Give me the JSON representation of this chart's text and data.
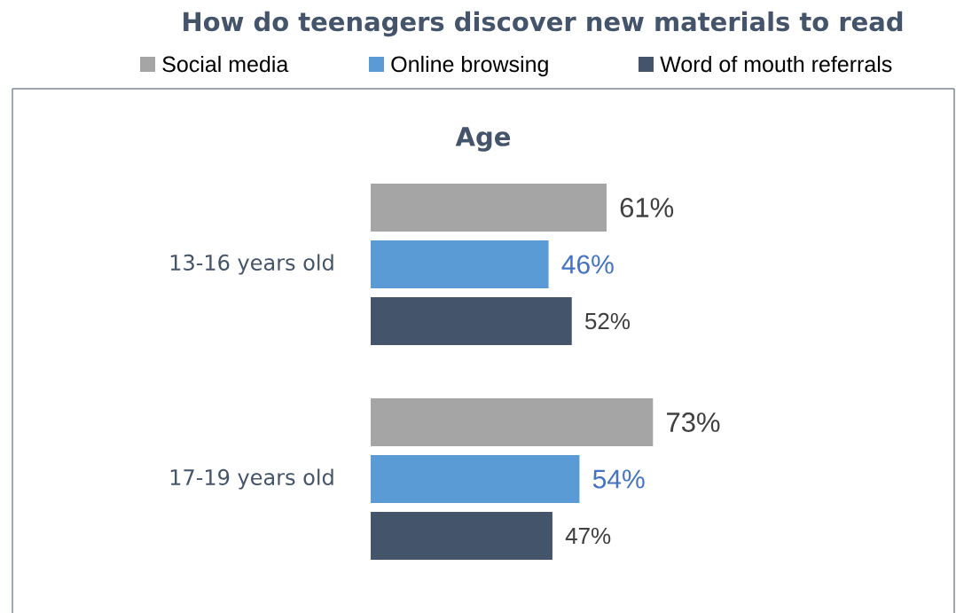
{
  "chart_data": {
    "type": "bar",
    "orientation": "horizontal",
    "title": "How do teenagers discover new materials to read",
    "subtitle": "Age",
    "categories": [
      "13-16 years old",
      "17-19 years old"
    ],
    "series": [
      {
        "name": "Social media",
        "color": "#a5a5a5",
        "values": [
          61,
          73
        ],
        "value_labels": [
          "61%",
          "73%"
        ]
      },
      {
        "name": "Online browsing",
        "color": "#5b9bd5",
        "values": [
          46,
          54
        ],
        "value_labels": [
          "46%",
          "54%"
        ]
      },
      {
        "name": "Word of mouth referrals",
        "color": "#44546a",
        "values": [
          52,
          47
        ],
        "value_labels": [
          "52%",
          "47%"
        ]
      }
    ],
    "legend": "top",
    "relative": false
  }
}
